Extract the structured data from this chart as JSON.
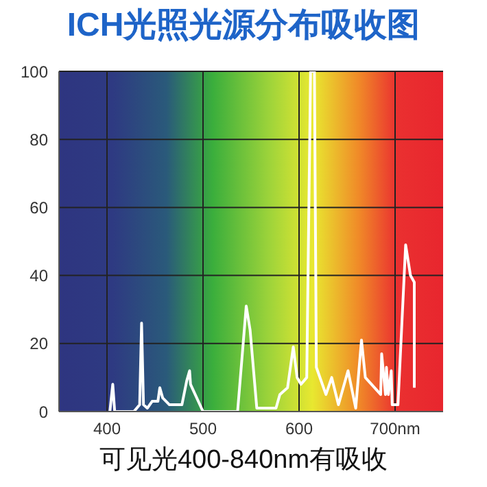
{
  "chart_data": {
    "type": "line",
    "title": "ICH光照光源分布吸收图",
    "annotations": [
      "可见光400-840nm有吸收"
    ],
    "x": [
      403,
      406,
      408,
      428,
      434,
      436,
      438,
      442,
      447,
      453,
      455,
      458,
      465,
      478,
      483,
      486,
      487,
      500,
      536,
      545,
      549,
      556,
      558,
      576,
      580,
      588,
      594,
      598,
      602,
      608,
      612,
      616,
      618,
      628,
      634,
      641,
      651,
      659,
      665,
      669,
      685,
      686,
      690,
      691,
      693,
      696,
      697,
      703,
      711,
      716,
      720,
      720
    ],
    "series": [
      {
        "color": "#ffffff",
        "values": [
          0,
          8,
          0,
          0,
          2,
          26,
          2,
          1,
          3,
          3,
          7,
          4,
          2,
          2,
          9,
          12,
          8,
          0,
          0,
          31,
          24,
          1,
          1,
          1,
          5,
          7,
          19,
          10,
          8,
          10,
          100,
          100,
          13,
          5,
          10,
          2,
          12,
          1,
          21,
          10,
          5,
          17,
          5,
          13,
          5,
          12,
          2,
          2,
          49,
          40,
          38,
          7
        ]
      }
    ],
    "xlim": [
      350,
      750
    ],
    "xticks": [
      400,
      500,
      600,
      {
        "value": 700,
        "label": "700nm"
      }
    ],
    "ylim": [
      0,
      100
    ],
    "yticks": [
      0,
      20,
      40,
      60,
      80,
      100
    ],
    "grid": true,
    "marker": "none",
    "line_style": "solid"
  }
}
